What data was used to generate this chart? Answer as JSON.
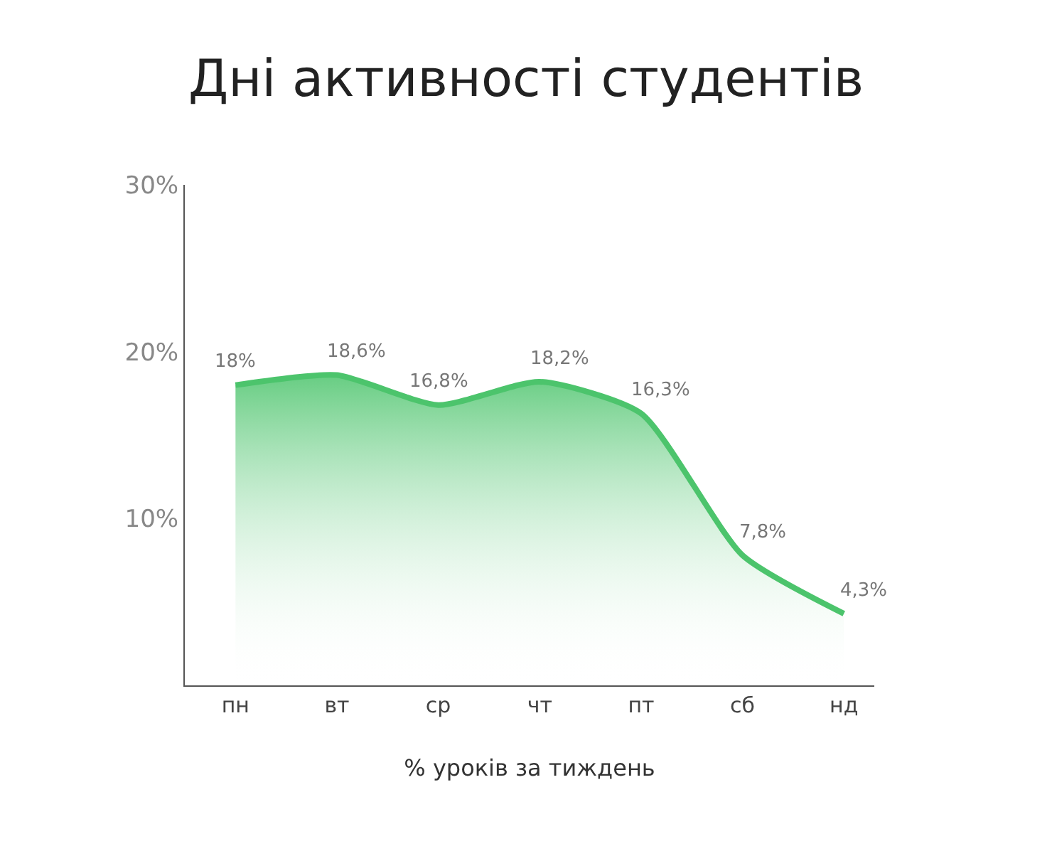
{
  "chart_data": {
    "type": "area",
    "title": "Дні активності студентів",
    "xlabel": "% уроків за тиждень",
    "categories": [
      "пн",
      "вт",
      "ср",
      "чт",
      "пт",
      "сб",
      "нд"
    ],
    "series": [
      {
        "color": "#4cc46c",
        "values": [
          18,
          18.6,
          16.8,
          18.2,
          16.3,
          7.8,
          4.3
        ],
        "value_labels": [
          "18%",
          "18,6%",
          "16,8%",
          "18,2%",
          "16,3%",
          "7,8%",
          "4,3%"
        ]
      }
    ],
    "ylim": [
      0,
      30
    ],
    "yticks": [
      {
        "value": 10,
        "label": "10%"
      },
      {
        "value": 20,
        "label": "20%"
      },
      {
        "value": 30,
        "label": "30%"
      }
    ],
    "legend": false,
    "marker": "none",
    "line_style": "solid"
  }
}
